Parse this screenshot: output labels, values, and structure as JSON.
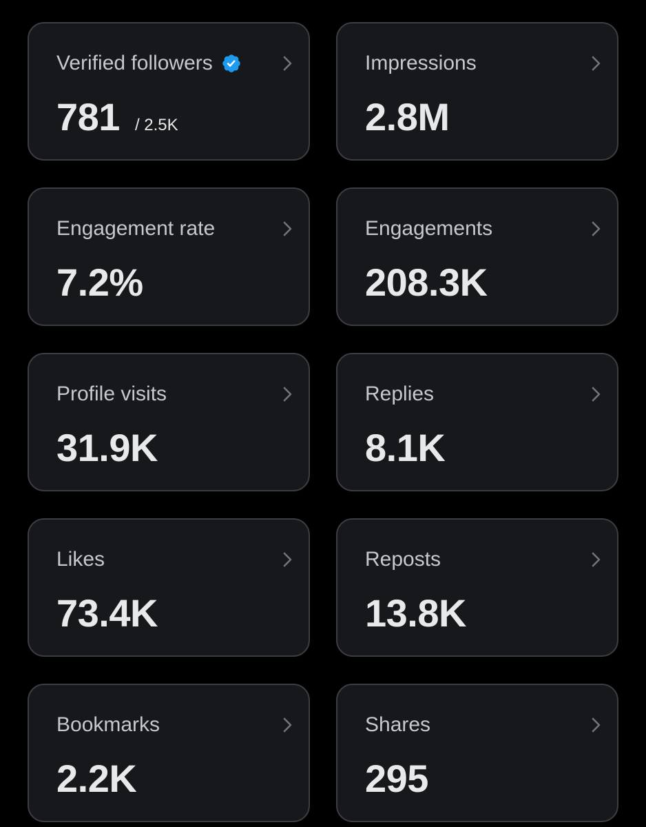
{
  "cards": [
    {
      "title": "Verified followers",
      "value": "781",
      "secondary": "/ 2.5K",
      "badge": "verified-badge-icon"
    },
    {
      "title": "Impressions",
      "value": "2.8M"
    },
    {
      "title": "Engagement rate",
      "value": "7.2%"
    },
    {
      "title": "Engagements",
      "value": "208.3K"
    },
    {
      "title": "Profile visits",
      "value": "31.9K"
    },
    {
      "title": "Replies",
      "value": "8.1K"
    },
    {
      "title": "Likes",
      "value": "73.4K"
    },
    {
      "title": "Reposts",
      "value": "13.8K"
    },
    {
      "title": "Bookmarks",
      "value": "2.2K"
    },
    {
      "title": "Shares",
      "value": "295"
    }
  ],
  "colors": {
    "background": "#000000",
    "card_background": "#16181c",
    "card_border": "#3a3d42",
    "title_text": "#c5c8cc",
    "value_text": "#e7e9ea",
    "verified_badge": "#1d9bf0"
  },
  "icons": {
    "chevron": "chevron-right-icon",
    "verified": "verified-badge-icon"
  }
}
